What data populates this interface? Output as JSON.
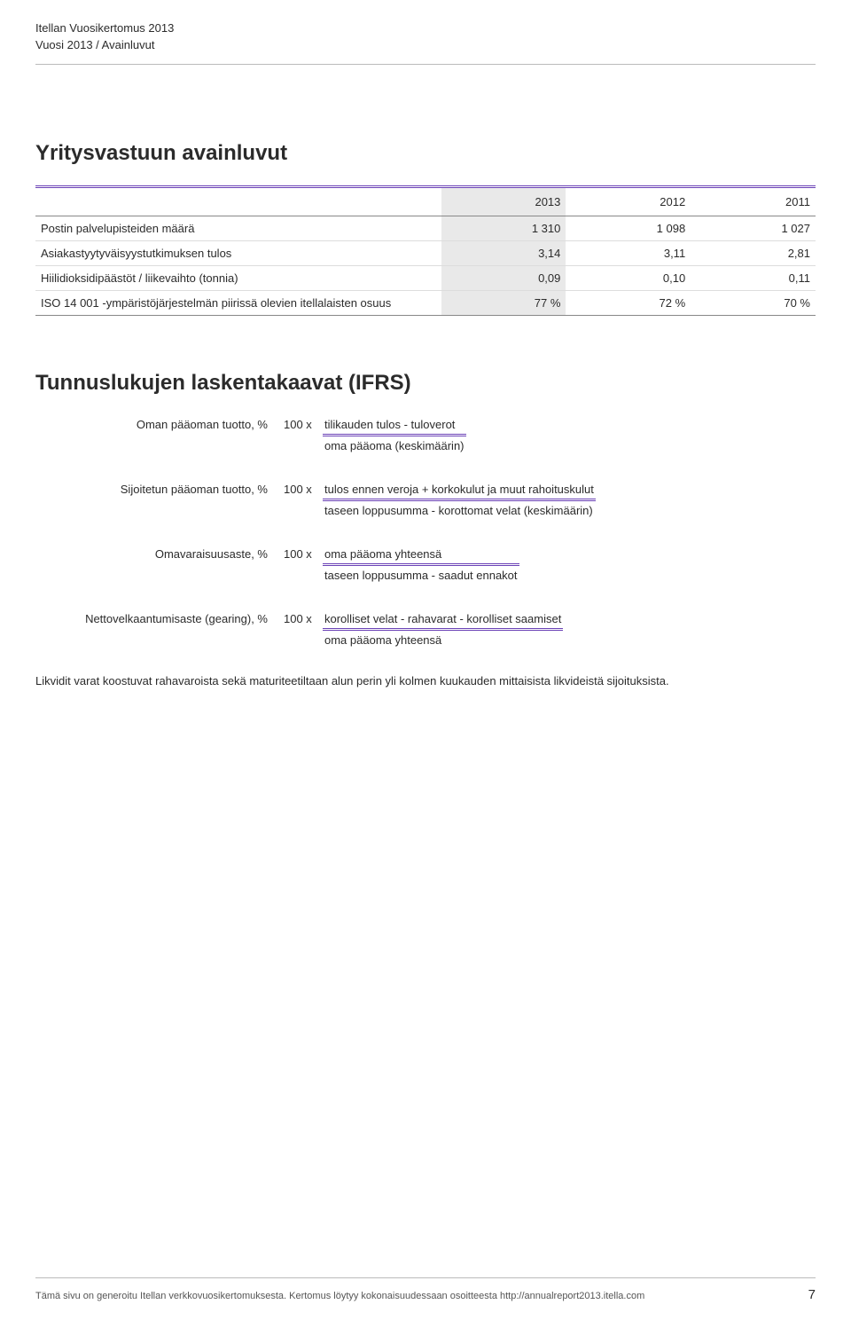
{
  "colors": {
    "accent": "#6a41b6",
    "shade": "#e9e9e9",
    "rule": "#bbbbbb",
    "text": "#2b2b2b",
    "row_divider": "#dddddd",
    "table_border": "#888888"
  },
  "header": {
    "title": "Itellan Vuosikertomus 2013",
    "breadcrumb": "Vuosi 2013 / Avainluvut"
  },
  "section1": {
    "heading": "Yritysvastuun avainluvut",
    "table": {
      "columns": [
        "",
        "2013",
        "2012",
        "2011"
      ],
      "shaded_col_index": 1,
      "rows": [
        {
          "label": "Postin palvelupisteiden määrä",
          "values": [
            "1 310",
            "1 098",
            "1 027"
          ]
        },
        {
          "label": "Asiakastyytyväisyystutkimuksen tulos",
          "values": [
            "3,14",
            "3,11",
            "2,81"
          ]
        },
        {
          "label": "Hiilidioksidipäästöt / liikevaihto (tonnia)",
          "values": [
            "0,09",
            "0,10",
            "0,11"
          ]
        },
        {
          "label": "ISO 14 001 -ympäristöjärjestelmän piirissä olevien itellalaisten osuus",
          "values": [
            "77 %",
            "72 %",
            "70 %"
          ]
        }
      ]
    }
  },
  "section2": {
    "heading": "Tunnuslukujen laskentakaavat (IFRS)",
    "formulas": [
      {
        "name": "Oman pääoman tuotto, %",
        "multiplier": "100 x",
        "numerator": "tilikauden tulos - tuloverot",
        "denominator": "oma pääoma (keskimäärin)"
      },
      {
        "name": "Sijoitetun pääoman tuotto, %",
        "multiplier": "100 x",
        "numerator": "tulos ennen veroja + korkokulut ja muut rahoituskulut",
        "denominator": "taseen loppusumma - korottomat velat (keskimäärin)"
      },
      {
        "name": "Omavaraisuusaste, %",
        "multiplier": "100 x",
        "numerator": "oma pääoma yhteensä",
        "denominator": "taseen loppusumma - saadut ennakot"
      },
      {
        "name": "Nettovelkaantumisaste (gearing), %",
        "multiplier": "100 x",
        "numerator": "korolliset velat - rahavarat - korolliset saamiset",
        "denominator": "oma pääoma yhteensä"
      }
    ],
    "note": "Likvidit varat koostuvat rahavaroista sekä maturiteetiltaan alun perin yli kolmen kuukauden mittaisista likvideistä sijoituksista."
  },
  "footer": {
    "text": "Tämä sivu on generoitu Itellan verkkovuosikertomuksesta. Kertomus löytyy kokonaisuudessaan osoitteesta http://annualreport2013.itella.com",
    "page_number": "7"
  }
}
